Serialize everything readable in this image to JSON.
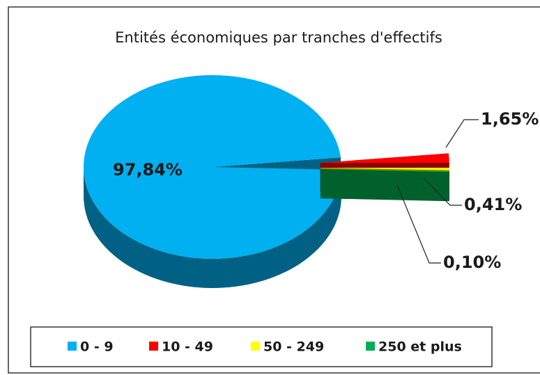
{
  "chart_data": {
    "type": "pie",
    "title": "Entités économiques par tranches d'effectifs",
    "categories": [
      "0 - 9",
      "10 - 49",
      "50 - 249",
      "250 et plus"
    ],
    "values": [
      97.84,
      1.65,
      0.41,
      0.1
    ],
    "value_labels": [
      "97,84%",
      "1,65%",
      "0,41%",
      "0,10%"
    ],
    "colors": [
      "#00b0f0",
      "#ff0000",
      "#ffff00",
      "#00b050"
    ],
    "legend": "bottom"
  }
}
